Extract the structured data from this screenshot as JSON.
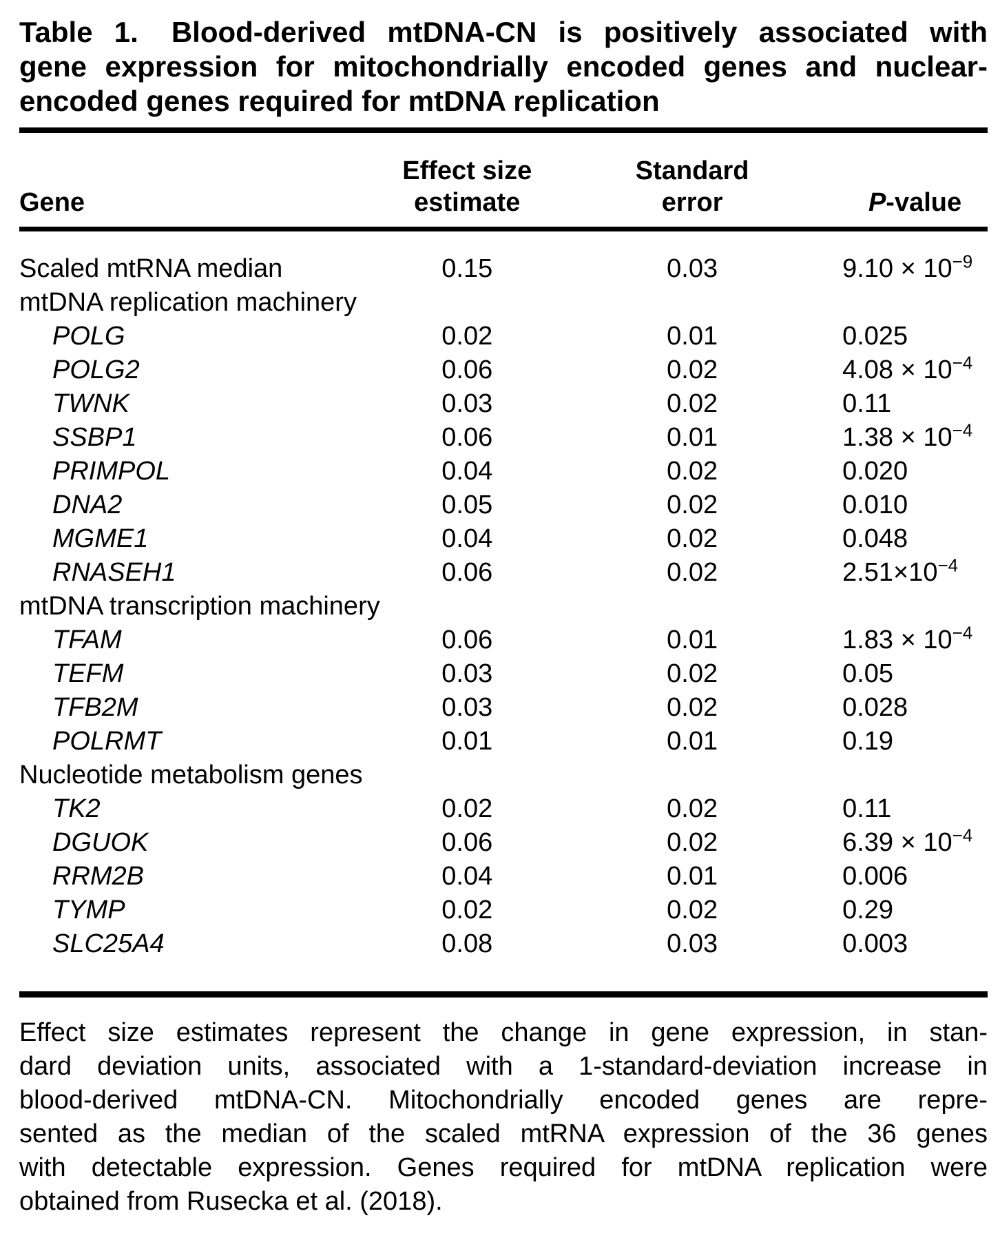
{
  "colors": {
    "text": "#000000",
    "background": "#ffffff",
    "rule": "#000000"
  },
  "caption": {
    "label": "Table 1.",
    "lines": [
      "Blood-derived mtDNA-CN is positively associated with",
      "gene expression for mitochondrially encoded genes and nuclear-",
      "encoded genes required for mtDNA replication"
    ]
  },
  "table": {
    "headers": {
      "gene": "Gene",
      "effect_line1": "Effect size",
      "effect_line2": "estimate",
      "se_line1": "Standard",
      "se_line2": "error",
      "p_italic": "P",
      "p_rest": "-value"
    },
    "rows": [
      {
        "gene": "Scaled mtRNA median",
        "effect": "0.15",
        "se": "0.03",
        "p_base": "9.10 × 10",
        "p_exp": "−9"
      },
      {
        "label": "mtDNA replication machinery"
      },
      {
        "gene": "POLG",
        "effect": "0.02",
        "se": "0.01",
        "p_base": "0.025",
        "p_exp": ""
      },
      {
        "gene": "POLG2",
        "effect": "0.06",
        "se": "0.02",
        "p_base": "4.08 × 10",
        "p_exp": "−4"
      },
      {
        "gene": "TWNK",
        "effect": "0.03",
        "se": "0.02",
        "p_base": "0.11",
        "p_exp": ""
      },
      {
        "gene": "SSBP1",
        "effect": "0.06",
        "se": "0.01",
        "p_base": "1.38 × 10",
        "p_exp": "−4"
      },
      {
        "gene": "PRIMPOL",
        "effect": "0.04",
        "se": "0.02",
        "p_base": "0.020",
        "p_exp": ""
      },
      {
        "gene": "DNA2",
        "effect": "0.05",
        "se": "0.02",
        "p_base": "0.010",
        "p_exp": ""
      },
      {
        "gene": "MGME1",
        "effect": "0.04",
        "se": "0.02",
        "p_base": "0.048",
        "p_exp": ""
      },
      {
        "gene": "RNASEH1",
        "effect": "0.06",
        "se": "0.02",
        "p_base": "2.51×10",
        "p_exp": "−4"
      },
      {
        "label": "mtDNA transcription machinery"
      },
      {
        "gene": "TFAM",
        "effect": "0.06",
        "se": "0.01",
        "p_base": "1.83 × 10",
        "p_exp": "−4"
      },
      {
        "gene": "TEFM",
        "effect": "0.03",
        "se": "0.02",
        "p_base": "0.05",
        "p_exp": ""
      },
      {
        "gene": "TFB2M",
        "effect": "0.03",
        "se": "0.02",
        "p_base": "0.028",
        "p_exp": ""
      },
      {
        "gene": "POLRMT",
        "effect": "0.01",
        "se": "0.01",
        "p_base": "0.19",
        "p_exp": ""
      },
      {
        "label": "Nucleotide metabolism genes"
      },
      {
        "gene": "TK2",
        "effect": "0.02",
        "se": "0.02",
        "p_base": "0.11",
        "p_exp": ""
      },
      {
        "gene": "DGUOK",
        "effect": "0.06",
        "se": "0.02",
        "p_base": "6.39 × 10",
        "p_exp": "−4"
      },
      {
        "gene": "RRM2B",
        "effect": "0.04",
        "se": "0.01",
        "p_base": "0.006",
        "p_exp": ""
      },
      {
        "gene": "TYMP",
        "effect": "0.02",
        "se": "0.02",
        "p_base": "0.29",
        "p_exp": ""
      },
      {
        "gene": "SLC25A4",
        "effect": "0.08",
        "se": "0.03",
        "p_base": "0.003",
        "p_exp": ""
      }
    ]
  },
  "footnote": {
    "lines": [
      "Effect size estimates represent the change in gene expression, in stan-",
      "dard deviation units, associated with a 1-standard-deviation increase in",
      "blood-derived mtDNA-CN. Mitochondrially encoded genes are repre-",
      "sented as the median of the scaled mtRNA expression of the 36 genes",
      "with detectable expression. Genes required for mtDNA replication were",
      "obtained from Rusecka et al. (2018)."
    ]
  }
}
